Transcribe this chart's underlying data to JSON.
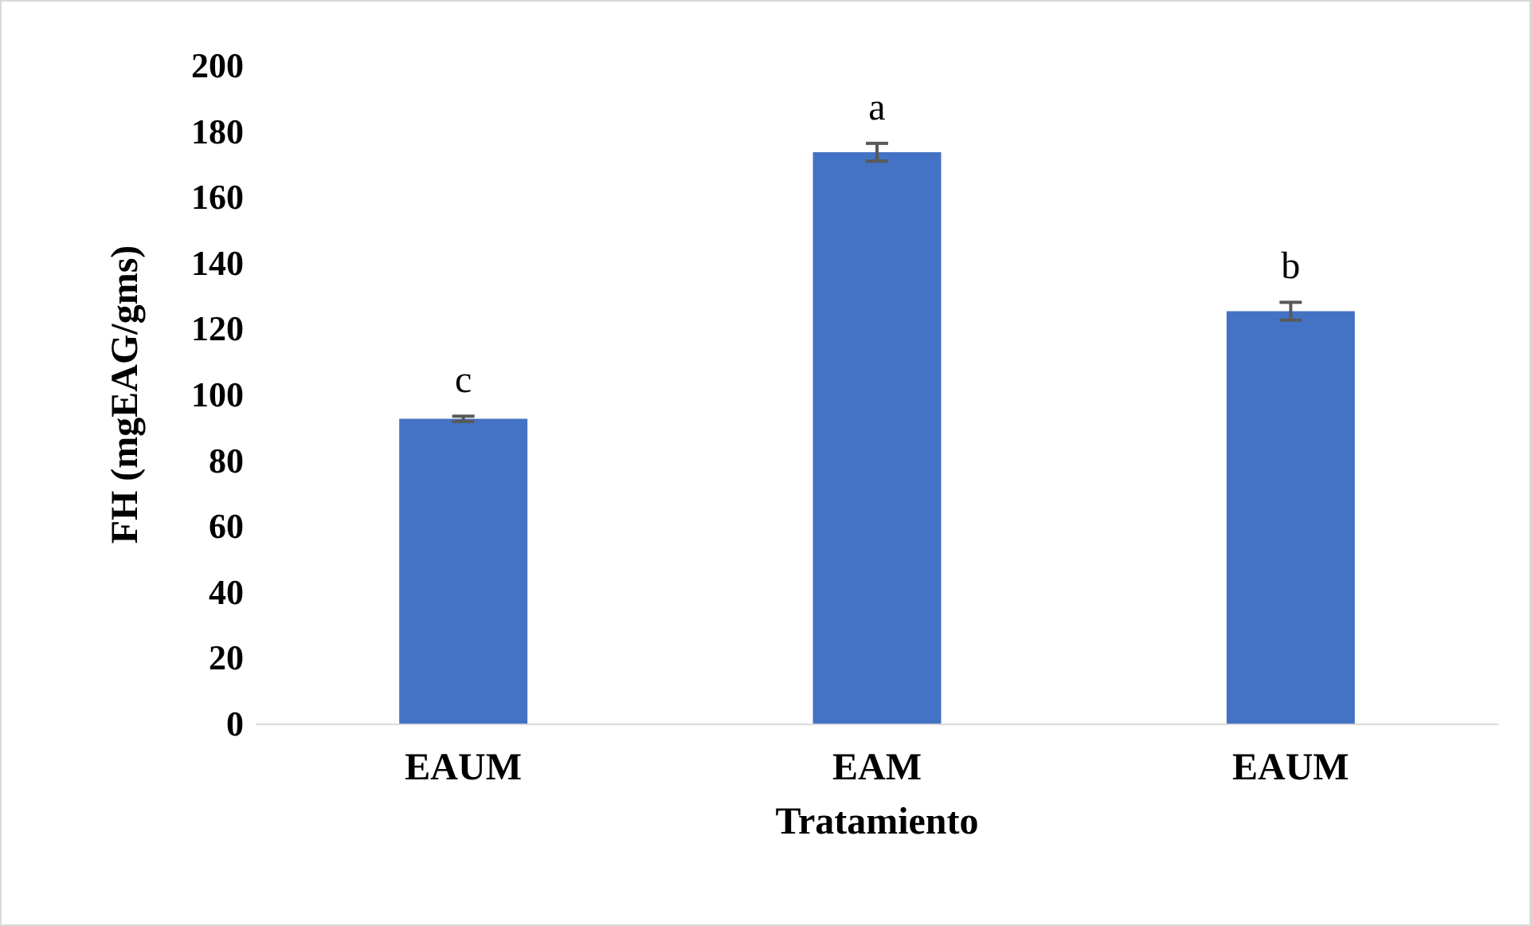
{
  "chart_data": {
    "type": "bar",
    "xlabel": "Tratamiento",
    "ylabel": "FH (mgEAG/gms)",
    "categories": [
      "EAUM",
      "EAM",
      "EAUM"
    ],
    "values": [
      92.6,
      173.6,
      125.3
    ],
    "errors": [
      0.8,
      2.7,
      2.7
    ],
    "color": "#4472c4",
    "ylim": [
      0,
      200
    ],
    "yticks": [
      0,
      20,
      40,
      60,
      80,
      100,
      120,
      140,
      160,
      180,
      200
    ],
    "annotations": [
      "c",
      "a",
      "b"
    ],
    "grid": false
  }
}
